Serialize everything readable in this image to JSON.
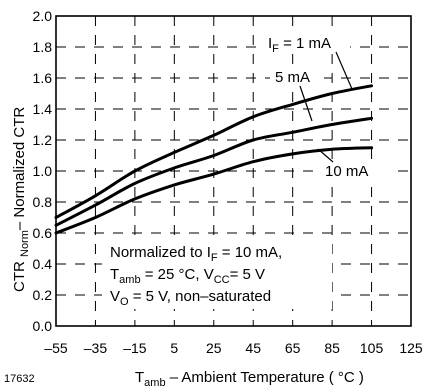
{
  "figure_id": "17632",
  "chart_data": {
    "type": "line",
    "xlabel": {
      "main": "T",
      "sub": "amb",
      "rest": " – Ambient Temperature ( °C )"
    },
    "ylabel": {
      "main": "CTR ",
      "sub": "Norm",
      "rest": "– Normalized CTR"
    },
    "xlim": [
      -55,
      125
    ],
    "ylim": [
      0.0,
      2.0
    ],
    "x_ticks": [
      "–55",
      "–35",
      "–15",
      "5",
      "25",
      "45",
      "65",
      "85",
      "105",
      "125"
    ],
    "y_ticks": [
      "0.0",
      "0.2",
      "0.4",
      "0.6",
      "0.8",
      "1.0",
      "1.2",
      "1.4",
      "1.6",
      "1.8",
      "2.0"
    ],
    "grid": true,
    "series": [
      {
        "name": "1 mA",
        "x": [
          -55,
          -35,
          -15,
          5,
          25,
          45,
          65,
          85,
          105
        ],
        "values": [
          0.7,
          0.84,
          1.0,
          1.12,
          1.23,
          1.35,
          1.43,
          1.5,
          1.55
        ]
      },
      {
        "name": "5 mA",
        "x": [
          -55,
          -35,
          -15,
          5,
          25,
          45,
          65,
          85,
          105
        ],
        "values": [
          0.65,
          0.78,
          0.92,
          1.02,
          1.1,
          1.2,
          1.25,
          1.3,
          1.34
        ]
      },
      {
        "name": "10 mA",
        "x": [
          -55,
          -35,
          -15,
          5,
          25,
          45,
          65,
          85,
          105
        ],
        "values": [
          0.6,
          0.7,
          0.82,
          0.91,
          0.98,
          1.06,
          1.11,
          1.14,
          1.15
        ]
      }
    ],
    "curve_labels": {
      "one": {
        "main": "I",
        "sub": "F",
        "rest": " =  1 mA"
      },
      "five": "5 mA",
      "ten": "10 mA"
    },
    "annotation": {
      "line1": {
        "pre": "Normalized to I",
        "sub": "F",
        "post": " = 10 mA,"
      },
      "line2": {
        "pre": "T",
        "sub1": "amb",
        "mid": " = 25 °C, V",
        "sub2": "CC",
        "post": "= 5 V"
      },
      "line3": {
        "pre": "V",
        "sub": "O",
        "post": " = 5 V, non–saturated"
      }
    }
  }
}
